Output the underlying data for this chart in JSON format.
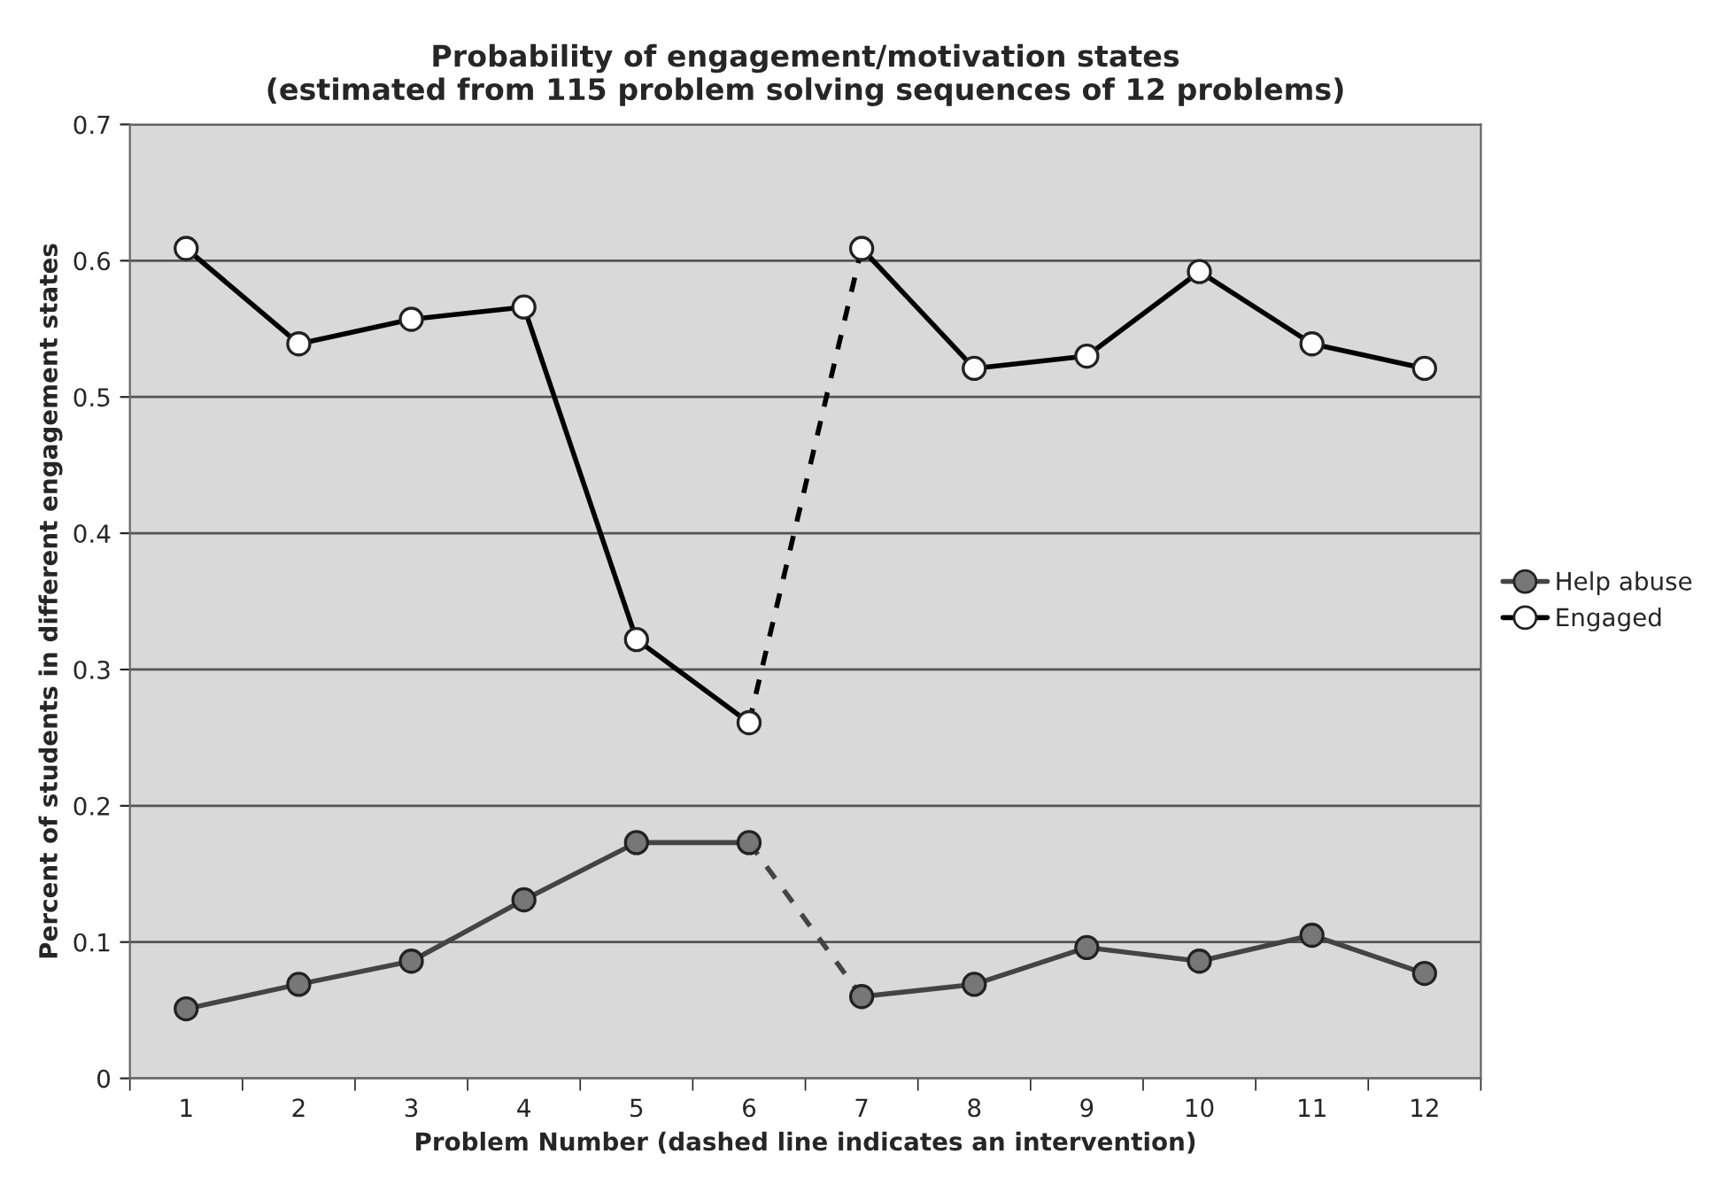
{
  "chart_data": {
    "type": "line",
    "title": "Probability of engagement/motivation states\n(estimated from 115 problem solving sequences of 12 problems)",
    "xlabel": "Problem Number (dashed line indicates an intervention)",
    "ylabel": "Percent of students in different engagement states",
    "categories": [
      "1",
      "2",
      "3",
      "4",
      "5",
      "6",
      "7",
      "8",
      "9",
      "10",
      "11",
      "12"
    ],
    "series": [
      {
        "name": "Help abuse",
        "color": "#444444",
        "colors": [
          "#777777",
          "#777777",
          "#777777",
          "#777777",
          "#777777",
          "#777777",
          null,
          null,
          null,
          null,
          null,
          null
        ],
        "marker": "circle",
        "line_style": "solid",
        "values": [
          0.051,
          0.069,
          0.086,
          0.131,
          0.173,
          0.173,
          null,
          null,
          null,
          null,
          null,
          null
        ]
      },
      {
        "color": "#444444",
        "marker": "none",
        "line_style": "dashed",
        "values": [
          null,
          null,
          null,
          null,
          null,
          0.173,
          0.06,
          null,
          null,
          null,
          null,
          null
        ]
      },
      {
        "color": "#444444",
        "colors": [
          null,
          null,
          null,
          null,
          null,
          null,
          "#777777",
          "#777777",
          "#777777",
          "#777777",
          "#777777",
          "#777777"
        ],
        "marker": "circle",
        "line_style": "solid",
        "values": [
          null,
          null,
          null,
          null,
          null,
          null,
          0.06,
          0.069,
          0.096,
          0.086,
          0.105,
          0.077
        ]
      },
      {
        "name": "Engaged",
        "color": "#000000",
        "colors": [
          "#ffffff",
          "#ffffff",
          "#ffffff",
          "#ffffff",
          "#ffffff",
          "#ffffff",
          null,
          null,
          null,
          null,
          null,
          null
        ],
        "marker": "circle",
        "line_style": "solid",
        "values": [
          0.609,
          0.539,
          0.557,
          0.566,
          0.322,
          0.261,
          null,
          null,
          null,
          null,
          null,
          null
        ]
      },
      {
        "color": "#000000",
        "marker": "none",
        "line_style": "dashed",
        "values": [
          null,
          null,
          null,
          null,
          null,
          0.261,
          0.609,
          null,
          null,
          null,
          null,
          null
        ]
      },
      {
        "color": "#000000",
        "colors": [
          null,
          null,
          null,
          null,
          null,
          null,
          "#ffffff",
          "#ffffff",
          "#ffffff",
          "#ffffff",
          "#ffffff",
          "#ffffff"
        ],
        "marker": "circle",
        "line_style": "solid",
        "values": [
          null,
          null,
          null,
          null,
          null,
          null,
          0.609,
          0.521,
          0.53,
          0.592,
          0.539,
          0.521
        ]
      }
    ],
    "ylim": [
      0,
      0.7
    ],
    "yticks": [
      0,
      0.1,
      0.2,
      0.3,
      0.4,
      0.5,
      0.6,
      0.7
    ],
    "grid": "y",
    "legend": "right"
  }
}
